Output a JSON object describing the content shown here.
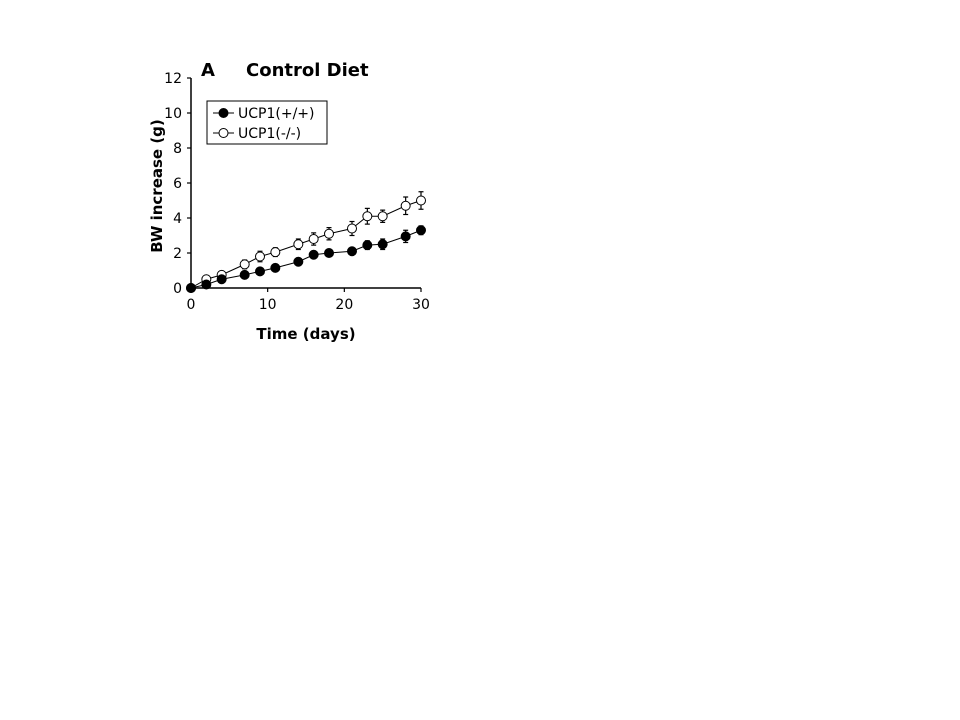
{
  "chart_data": {
    "type": "line",
    "panel_label": "A",
    "title": "Control Diet",
    "xlabel": "Time (days)",
    "ylabel": "BW increase (g)",
    "xlim": [
      0,
      30
    ],
    "ylim": [
      0,
      12
    ],
    "xticks": [
      0,
      10,
      20,
      30
    ],
    "yticks": [
      0,
      2,
      4,
      6,
      8,
      10,
      12
    ],
    "grid": false,
    "legend_position": "top-left",
    "series": [
      {
        "name": "UCP1(+/+)",
        "marker": "filled-circle",
        "x": [
          0,
          2,
          4,
          7,
          9,
          11,
          14,
          16,
          18,
          21,
          23,
          25,
          28,
          30
        ],
        "y": [
          0,
          0.2,
          0.5,
          0.75,
          0.95,
          1.15,
          1.5,
          1.9,
          2.0,
          2.1,
          2.45,
          2.5,
          2.95,
          3.3
        ],
        "err": [
          0,
          0.05,
          0.1,
          0.15,
          0.15,
          0.15,
          0.15,
          0.2,
          0.2,
          0.2,
          0.25,
          0.3,
          0.35,
          0.25
        ]
      },
      {
        "name": "UCP1(-/-)",
        "marker": "open-circle",
        "x": [
          0,
          2,
          4,
          7,
          9,
          11,
          14,
          16,
          18,
          21,
          23,
          25,
          28,
          30
        ],
        "y": [
          0,
          0.5,
          0.75,
          1.35,
          1.8,
          2.05,
          2.5,
          2.8,
          3.1,
          3.4,
          4.1,
          4.1,
          4.7,
          5.0
        ],
        "err": [
          0,
          0.1,
          0.15,
          0.25,
          0.3,
          0.25,
          0.3,
          0.35,
          0.35,
          0.4,
          0.45,
          0.35,
          0.5,
          0.5
        ]
      }
    ]
  }
}
